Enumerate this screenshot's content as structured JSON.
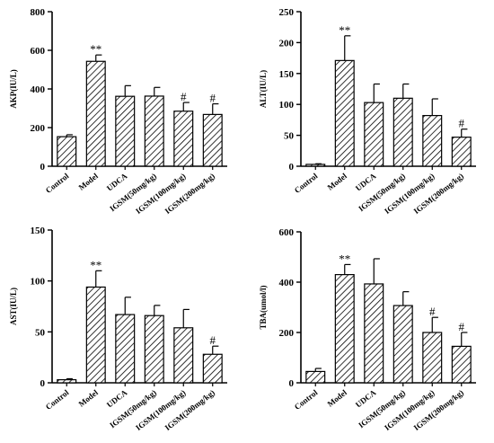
{
  "chart_data": [
    {
      "type": "bar",
      "title": "",
      "xlabel": "",
      "ylabel": "AKP(IU/L)",
      "categories": [
        "Control",
        "Model",
        "UDCA",
        "IGSM(50mg/kg)",
        "IGSM(100mg/kg)",
        "IGSM(200mg/kg)"
      ],
      "values": [
        153,
        543,
        362,
        363,
        285,
        268
      ],
      "errors": [
        10,
        33,
        55,
        45,
        45,
        55
      ],
      "annotations": [
        "",
        "**",
        "",
        "",
        "#",
        "#"
      ],
      "ylim": [
        0,
        800
      ],
      "yticks": [
        "0",
        "200",
        "400",
        "600",
        "800"
      ],
      "grid": false,
      "legend": "none",
      "bar_fill": "hatched",
      "bar_color": "#ffffff",
      "line_color": "#000000"
    },
    {
      "type": "bar",
      "title": "",
      "xlabel": "",
      "ylabel": "ALT(IU/L)",
      "categories": [
        "Control",
        "Model",
        "UDCA",
        "IGSM(50mg/kg)",
        "IGSM(100mg/kg)",
        "IGSM(200mg/kg)"
      ],
      "values": [
        3,
        171,
        103,
        110,
        82,
        47
      ],
      "errors": [
        1,
        40,
        30,
        23,
        27,
        13
      ],
      "annotations": [
        "",
        "**",
        "",
        "",
        "",
        "#"
      ],
      "ylim": [
        0,
        250
      ],
      "yticks": [
        "0",
        "50",
        "100",
        "150",
        "200",
        "250"
      ],
      "grid": false,
      "legend": "none",
      "bar_fill": "hatched",
      "bar_color": "#ffffff",
      "line_color": "#000000"
    },
    {
      "type": "bar",
      "title": "",
      "xlabel": "",
      "ylabel": "AST(IU/L)",
      "categories": [
        "Control",
        "Model",
        "UDCA",
        "IGSM(50mg/kg)",
        "IGSM(100mg/kg)",
        "IGSM(200mg/kg)"
      ],
      "values": [
        3,
        94,
        67,
        66,
        54,
        28
      ],
      "errors": [
        1,
        16,
        17,
        10,
        18,
        8
      ],
      "annotations": [
        "",
        "**",
        "",
        "",
        "",
        "#"
      ],
      "ylim": [
        0,
        150
      ],
      "yticks": [
        "0",
        "50",
        "100",
        "150"
      ],
      "grid": false,
      "legend": "none",
      "bar_fill": "hatched",
      "bar_color": "#ffffff",
      "line_color": "#000000"
    },
    {
      "type": "bar",
      "title": "",
      "xlabel": "",
      "ylabel": "TBA(umol/l)",
      "categories": [
        "Control",
        "Model",
        "UDCA",
        "IGSM(50mg/kg)",
        "IGSM(100mg/kg)",
        "IGSM(200mg/kg)"
      ],
      "values": [
        45,
        430,
        393,
        307,
        200,
        145
      ],
      "errors": [
        12,
        40,
        100,
        55,
        60,
        55
      ],
      "annotations": [
        "",
        "**",
        "",
        "",
        "#",
        "#"
      ],
      "ylim": [
        0,
        600
      ],
      "yticks": [
        "0",
        "200",
        "400",
        "600"
      ],
      "grid": false,
      "legend": "none",
      "bar_fill": "hatched",
      "bar_color": "#ffffff",
      "line_color": "#000000"
    }
  ]
}
